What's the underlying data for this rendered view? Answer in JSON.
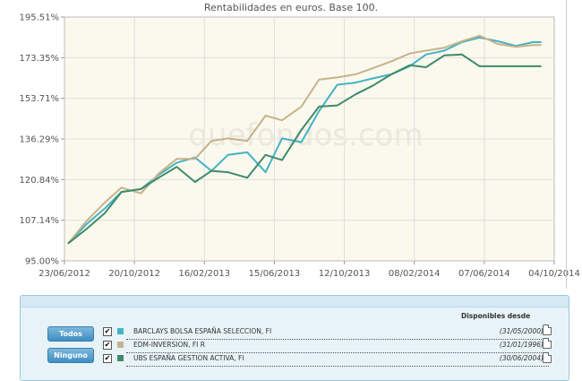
{
  "chart_data": {
    "type": "line",
    "title": "Rentabilidades en euros. Base 100.",
    "watermark": "quefondos.com",
    "y_ticks": [
      "195.51%",
      "173.35%",
      "153.71%",
      "136.29%",
      "120.84%",
      "107.14%",
      "95.00%"
    ],
    "ylim": [
      95.0,
      195.51
    ],
    "y_scale": "log",
    "x_ticks": [
      "23/06/2012",
      "20/10/2012",
      "16/02/2013",
      "15/06/2013",
      "12/10/2013",
      "08/02/2014",
      "07/06/2014",
      "04/10/2014"
    ],
    "xlim": [
      "2012-06-23",
      "2014-10-04"
    ],
    "grid": true,
    "x": [
      "2012-06-29",
      "2012-07-31",
      "2012-08-31",
      "2012-09-28",
      "2012-10-31",
      "2012-11-30",
      "2012-12-31",
      "2013-01-31",
      "2013-02-28",
      "2013-03-28",
      "2013-04-30",
      "2013-05-31",
      "2013-06-28",
      "2013-07-31",
      "2013-08-30",
      "2013-09-30",
      "2013-10-31",
      "2013-11-29",
      "2013-12-31",
      "2014-01-31",
      "2014-02-28",
      "2014-03-31",
      "2014-04-30",
      "2014-05-30",
      "2014-06-30",
      "2014-07-31",
      "2014-08-29",
      "2014-09-12"
    ],
    "series": [
      {
        "name": "BARCLAYS BOLSA ESPAÑA SELECCION, FI",
        "color": "#45b2c5",
        "values": [
          100.0,
          106.0,
          111.0,
          116.5,
          117.5,
          122.5,
          127.0,
          129.0,
          124.0,
          130.0,
          131.0,
          123.5,
          136.5,
          135.0,
          148.0,
          160.0,
          161.0,
          163.0,
          165.0,
          169.0,
          175.0,
          177.0,
          181.5,
          184.0,
          182.0,
          179.5,
          181.5,
          181.5
        ]
      },
      {
        "name": "EDM-INVERSION, FI R",
        "color": "#c6b38a",
        "values": [
          100.0,
          107.0,
          113.0,
          118.0,
          116.0,
          123.0,
          128.5,
          128.5,
          135.5,
          136.5,
          135.5,
          146.0,
          144.0,
          150.0,
          162.5,
          163.5,
          165.0,
          168.0,
          171.5,
          175.5,
          177.0,
          178.5,
          182.0,
          185.0,
          180.5,
          179.0,
          180.0,
          180.0
        ]
      },
      {
        "name": "UBS ESPAÑA GESTION ACTIVA, FI",
        "color": "#3f8a6b",
        "values": [
          100.0,
          104.5,
          109.5,
          116.5,
          117.5,
          121.5,
          125.5,
          120.0,
          124.0,
          123.5,
          121.5,
          130.0,
          128.0,
          140.0,
          150.0,
          150.5,
          155.5,
          159.5,
          165.0,
          169.5,
          168.5,
          174.5,
          175.0,
          169.0,
          169.0,
          169.0,
          169.0,
          169.0
        ]
      }
    ]
  },
  "legend": {
    "all_button": "Todos",
    "none_button": "Ninguno",
    "available_header": "Disponibles desde",
    "rows": [
      {
        "check": "✔",
        "name": "BARCLAYS BOLSA ESPAÑA SELECCION, FI",
        "date": "(31/05/2000)",
        "color": "#45b2c5"
      },
      {
        "check": "✔",
        "name": "EDM-INVERSION, FI R",
        "date": "(31/01/1996)",
        "color": "#c6b38a"
      },
      {
        "check": "✔",
        "name": "UBS ESPAÑA GESTION ACTIVA, FI",
        "date": "(30/06/2004)",
        "color": "#3f8a6b"
      }
    ]
  }
}
